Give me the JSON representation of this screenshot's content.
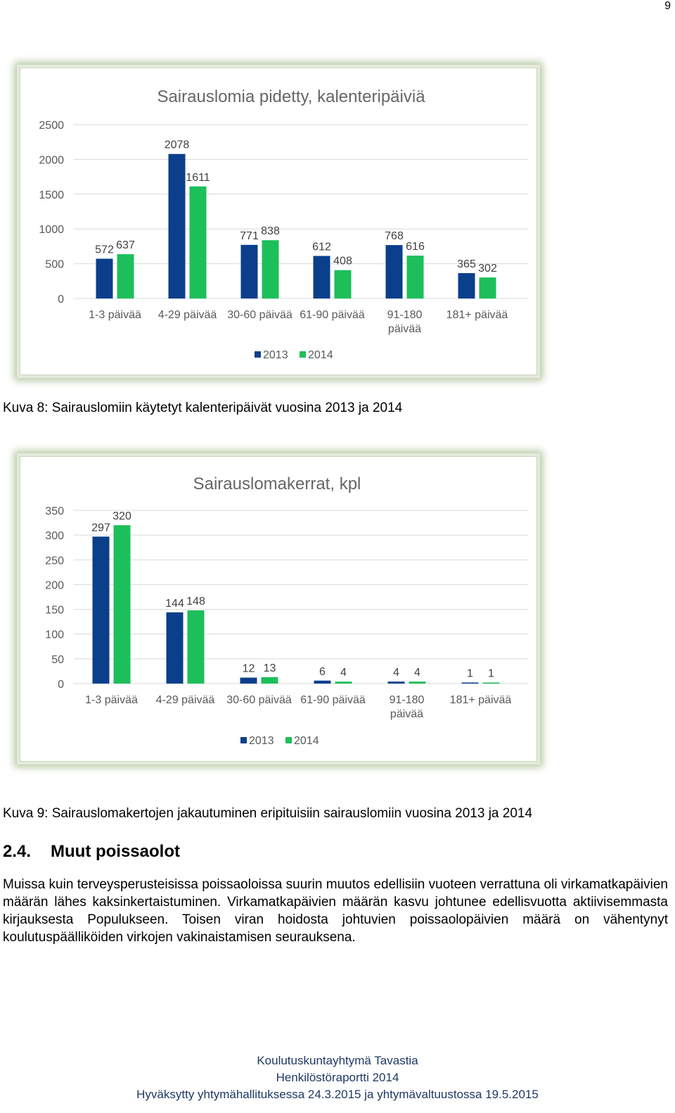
{
  "page_number": "9",
  "charts": [
    {
      "chart_data": {
        "type": "bar",
        "title": "Sairauslomia pidetty, kalenteripäiviä",
        "categories": [
          [
            "1-3 päivää"
          ],
          [
            "4-29 päivää"
          ],
          [
            "30-60 päivää"
          ],
          [
            "61-90 päivää"
          ],
          [
            "91-180",
            "päivää"
          ],
          [
            "181+ päivää"
          ]
        ],
        "series": [
          {
            "name": "2013",
            "values": [
              572,
              2078,
              771,
              612,
              768,
              365
            ],
            "color": "#0b3f8c"
          },
          {
            "name": "2014",
            "values": [
              637,
              1611,
              838,
              408,
              616,
              302
            ],
            "color": "#1dbf5a"
          }
        ],
        "yticks": [
          0,
          500,
          1000,
          1500,
          2000,
          2500
        ],
        "ylim": [
          0,
          2500
        ],
        "grid": true,
        "legend": "bottom"
      }
    },
    {
      "chart_data": {
        "type": "bar",
        "title": "Sairauslomakerrat, kpl",
        "categories": [
          [
            "1-3 päivää"
          ],
          [
            "4-29 päivää"
          ],
          [
            "30-60 päivää"
          ],
          [
            "61-90 päivää"
          ],
          [
            "91-180",
            "päivää"
          ],
          [
            "181+ päivää"
          ]
        ],
        "series": [
          {
            "name": "2013",
            "values": [
              297,
              144,
              12,
              6,
              4,
              1
            ],
            "color": "#0b3f8c"
          },
          {
            "name": "2014",
            "values": [
              320,
              148,
              13,
              4,
              4,
              1
            ],
            "color": "#1dbf5a"
          }
        ],
        "yticks": [
          0,
          50,
          100,
          150,
          200,
          250,
          300,
          350
        ],
        "ylim": [
          0,
          350
        ],
        "grid": true,
        "legend": "bottom"
      }
    }
  ],
  "captions": {
    "fig8": "Kuva 8: Sairauslomiin käytetyt kalenteripäivät vuosina 2013 ja 2014",
    "fig9": "Kuva 9: Sairauslomakertojen jakautuminen eripituisiin sairauslomiin vuosina 2013 ja 2014"
  },
  "section": {
    "number": "2.4.",
    "title": "Muut poissaolot",
    "paragraph": "Muissa kuin terveysperusteisissa poissaoloissa suurin muutos edellisiin vuoteen verrattuna oli virkamatkapäivien määrän lähes kaksinkertaistuminen. Virkamatkapäivien määrän kasvu johtunee edellisvuotta aktiivisemmasta kirjauksesta Populukseen. Toisen viran hoidosta johtuvien poissaolopäivien määrä on vähentynyt koulutuspäälliköiden virkojen vakinaistamisen seurauksena."
  },
  "footer": {
    "org": "Koulutuskuntayhtymä Tavastia",
    "report": "Henkilöstöraportti 2014",
    "approval": "Hyväksytty yhtymähallituksessa 24.3.2015 ja yhtymävaltuustossa 19.5.2015"
  }
}
